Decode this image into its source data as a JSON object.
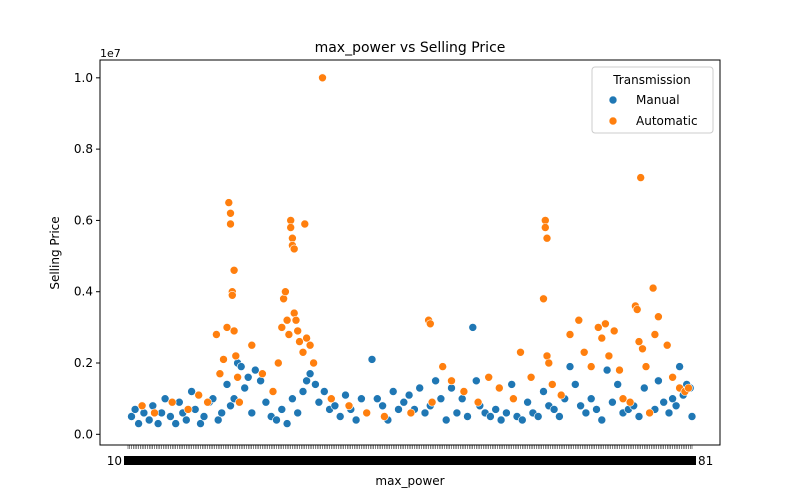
{
  "chart_data": {
    "type": "scatter",
    "title": "max_power vs Selling Price",
    "xlabel": "max_power",
    "ylabel": "Selling Price",
    "y_offset_text": "1e7",
    "ylim": [
      -0.3,
      10.5
    ],
    "y_scale_note": "values in units of 1e7",
    "yticks": [
      0.0,
      0.2,
      0.4,
      0.6,
      0.8,
      1.0
    ],
    "ytick_labels": [
      "0.0",
      "0.2",
      "0.4",
      "0.6",
      "0.8",
      "1.0"
    ],
    "xtick_first_label": "10",
    "xtick_last_label": "81",
    "x_category_count": 320,
    "grid": false,
    "legend": {
      "title": "Transmission",
      "placement": "upper right"
    },
    "series": [
      {
        "name": "Manual",
        "color": "#1f77b4",
        "points": [
          [
            2,
            0.5
          ],
          [
            4,
            0.7
          ],
          [
            6,
            0.3
          ],
          [
            9,
            0.6
          ],
          [
            12,
            0.4
          ],
          [
            14,
            0.8
          ],
          [
            17,
            0.3
          ],
          [
            19,
            0.6
          ],
          [
            21,
            1.0
          ],
          [
            24,
            0.5
          ],
          [
            27,
            0.3
          ],
          [
            29,
            0.9
          ],
          [
            31,
            0.6
          ],
          [
            33,
            0.4
          ],
          [
            36,
            1.2
          ],
          [
            38,
            0.7
          ],
          [
            41,
            0.3
          ],
          [
            43,
            0.5
          ],
          [
            46,
            0.9
          ],
          [
            48,
            1.0
          ],
          [
            51,
            0.4
          ],
          [
            53,
            0.6
          ],
          [
            56,
            1.4
          ],
          [
            58,
            0.8
          ],
          [
            60,
            1.0
          ],
          [
            62,
            2.0
          ],
          [
            64,
            1.9
          ],
          [
            66,
            1.3
          ],
          [
            68,
            1.6
          ],
          [
            70,
            0.6
          ],
          [
            72,
            1.8
          ],
          [
            75,
            1.5
          ],
          [
            78,
            0.9
          ],
          [
            81,
            0.5
          ],
          [
            84,
            0.4
          ],
          [
            87,
            0.7
          ],
          [
            90,
            0.3
          ],
          [
            93,
            1.0
          ],
          [
            96,
            0.6
          ],
          [
            99,
            1.2
          ],
          [
            101,
            1.5
          ],
          [
            103,
            1.7
          ],
          [
            106,
            1.4
          ],
          [
            108,
            0.9
          ],
          [
            111,
            1.2
          ],
          [
            114,
            0.7
          ],
          [
            117,
            0.8
          ],
          [
            120,
            0.5
          ],
          [
            123,
            1.1
          ],
          [
            126,
            0.7
          ],
          [
            129,
            0.4
          ],
          [
            132,
            1.0
          ],
          [
            135,
            0.6
          ],
          [
            138,
            2.1
          ],
          [
            141,
            1.0
          ],
          [
            144,
            0.8
          ],
          [
            147,
            0.4
          ],
          [
            150,
            1.2
          ],
          [
            153,
            0.7
          ],
          [
            156,
            0.9
          ],
          [
            159,
            1.1
          ],
          [
            162,
            0.7
          ],
          [
            165,
            1.3
          ],
          [
            168,
            0.6
          ],
          [
            171,
            0.8
          ],
          [
            174,
            1.5
          ],
          [
            177,
            1.0
          ],
          [
            180,
            0.4
          ],
          [
            183,
            1.3
          ],
          [
            186,
            0.6
          ],
          [
            189,
            1.0
          ],
          [
            192,
            0.5
          ],
          [
            195,
            3.0
          ],
          [
            197,
            1.5
          ],
          [
            199,
            0.8
          ],
          [
            202,
            0.6
          ],
          [
            205,
            0.5
          ],
          [
            208,
            0.7
          ],
          [
            211,
            0.4
          ],
          [
            214,
            0.6
          ],
          [
            217,
            1.4
          ],
          [
            220,
            0.5
          ],
          [
            223,
            0.4
          ],
          [
            226,
            0.9
          ],
          [
            229,
            0.6
          ],
          [
            232,
            0.5
          ],
          [
            235,
            1.2
          ],
          [
            238,
            0.8
          ],
          [
            241,
            0.7
          ],
          [
            244,
            0.5
          ],
          [
            247,
            1.0
          ],
          [
            250,
            1.9
          ],
          [
            253,
            1.4
          ],
          [
            256,
            0.8
          ],
          [
            259,
            0.6
          ],
          [
            262,
            1.0
          ],
          [
            265,
            0.7
          ],
          [
            268,
            0.4
          ],
          [
            271,
            1.8
          ],
          [
            274,
            0.9
          ],
          [
            277,
            1.4
          ],
          [
            280,
            0.6
          ],
          [
            283,
            0.7
          ],
          [
            286,
            0.8
          ],
          [
            289,
            0.5
          ],
          [
            292,
            1.3
          ],
          [
            295,
            0.6
          ],
          [
            298,
            0.7
          ],
          [
            300,
            1.5
          ],
          [
            303,
            0.9
          ],
          [
            306,
            0.6
          ],
          [
            308,
            1.0
          ],
          [
            310,
            0.8
          ],
          [
            312,
            1.9
          ],
          [
            314,
            1.1
          ],
          [
            316,
            1.4
          ],
          [
            318,
            1.3
          ],
          [
            319,
            0.5
          ]
        ]
      },
      {
        "name": "Automatic",
        "color": "#ff7f0e",
        "points": [
          [
            8,
            0.8
          ],
          [
            15,
            0.6
          ],
          [
            25,
            0.9
          ],
          [
            34,
            0.7
          ],
          [
            40,
            1.1
          ],
          [
            45,
            0.9
          ],
          [
            50,
            2.8
          ],
          [
            52,
            1.7
          ],
          [
            54,
            2.1
          ],
          [
            56,
            3.0
          ],
          [
            57,
            6.5
          ],
          [
            58,
            6.2
          ],
          [
            58,
            5.9
          ],
          [
            59,
            4.0
          ],
          [
            59,
            3.9
          ],
          [
            60,
            4.6
          ],
          [
            60,
            2.9
          ],
          [
            61,
            2.2
          ],
          [
            62,
            1.6
          ],
          [
            63,
            0.9
          ],
          [
            70,
            2.5
          ],
          [
            76,
            1.7
          ],
          [
            82,
            1.2
          ],
          [
            85,
            2.0
          ],
          [
            87,
            3.0
          ],
          [
            88,
            3.8
          ],
          [
            89,
            4.0
          ],
          [
            90,
            3.2
          ],
          [
            91,
            2.8
          ],
          [
            92,
            6.0
          ],
          [
            92,
            5.8
          ],
          [
            93,
            5.5
          ],
          [
            93,
            5.3
          ],
          [
            94,
            5.2
          ],
          [
            94,
            3.4
          ],
          [
            95,
            3.2
          ],
          [
            96,
            2.9
          ],
          [
            97,
            2.6
          ],
          [
            99,
            2.3
          ],
          [
            100,
            5.9
          ],
          [
            101,
            2.7
          ],
          [
            103,
            2.5
          ],
          [
            105,
            2.0
          ],
          [
            110,
            10.0
          ],
          [
            115,
            1.0
          ],
          [
            125,
            0.8
          ],
          [
            135,
            0.6
          ],
          [
            145,
            0.5
          ],
          [
            160,
            0.6
          ],
          [
            170,
            3.2
          ],
          [
            171,
            3.1
          ],
          [
            172,
            0.9
          ],
          [
            178,
            1.9
          ],
          [
            183,
            1.5
          ],
          [
            190,
            1.2
          ],
          [
            198,
            0.9
          ],
          [
            204,
            1.6
          ],
          [
            210,
            1.3
          ],
          [
            218,
            1.0
          ],
          [
            222,
            2.3
          ],
          [
            228,
            1.6
          ],
          [
            235,
            3.8
          ],
          [
            236,
            6.0
          ],
          [
            236,
            5.8
          ],
          [
            237,
            5.5
          ],
          [
            237,
            2.2
          ],
          [
            238,
            2.0
          ],
          [
            240,
            1.4
          ],
          [
            245,
            1.1
          ],
          [
            250,
            2.8
          ],
          [
            255,
            3.2
          ],
          [
            258,
            2.3
          ],
          [
            262,
            1.9
          ],
          [
            266,
            3.0
          ],
          [
            268,
            2.7
          ],
          [
            270,
            3.1
          ],
          [
            272,
            2.2
          ],
          [
            275,
            2.9
          ],
          [
            278,
            1.8
          ],
          [
            280,
            1.0
          ],
          [
            284,
            0.9
          ],
          [
            287,
            3.6
          ],
          [
            288,
            3.5
          ],
          [
            289,
            2.6
          ],
          [
            290,
            7.2
          ],
          [
            291,
            2.4
          ],
          [
            293,
            1.9
          ],
          [
            295,
            0.6
          ],
          [
            297,
            4.1
          ],
          [
            298,
            2.8
          ],
          [
            300,
            3.3
          ],
          [
            305,
            2.5
          ],
          [
            308,
            1.6
          ],
          [
            312,
            1.3
          ],
          [
            315,
            1.2
          ],
          [
            317,
            1.3
          ]
        ]
      }
    ]
  }
}
